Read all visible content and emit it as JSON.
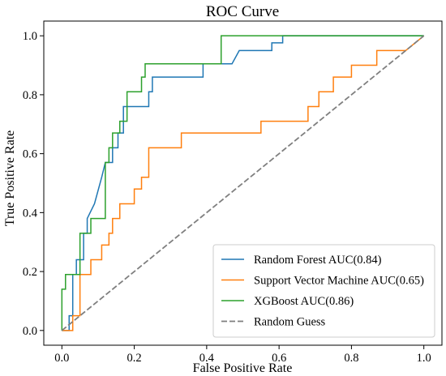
{
  "chart_data": {
    "type": "line",
    "title": "ROC Curve",
    "xlabel": "False Positive Rate",
    "ylabel": "True Positive Rate",
    "xlim": [
      -0.05,
      1.05
    ],
    "ylim": [
      -0.05,
      1.05
    ],
    "x_ticks": [
      "0.0",
      "0.2",
      "0.4",
      "0.6",
      "0.8",
      "1.0"
    ],
    "y_ticks": [
      "0.0",
      "0.2",
      "0.4",
      "0.6",
      "0.8",
      "1.0"
    ],
    "grid": false,
    "legend_position": "lower-right",
    "series": [
      {
        "name": "Random Forest AUC(0.84)",
        "color": "#1f77b4",
        "style": "solid",
        "x": [
          0.0,
          0.02,
          0.02,
          0.03,
          0.03,
          0.04,
          0.04,
          0.06,
          0.06,
          0.07,
          0.07,
          0.09,
          0.11,
          0.12,
          0.14,
          0.14,
          0.155,
          0.155,
          0.17,
          0.17,
          0.19,
          0.19,
          0.24,
          0.24,
          0.25,
          0.25,
          0.39,
          0.39,
          0.47,
          0.49,
          0.56,
          0.58,
          0.58,
          0.61,
          0.61,
          1.0
        ],
        "y": [
          0.0,
          0.0,
          0.05,
          0.05,
          0.19,
          0.19,
          0.24,
          0.24,
          0.33,
          0.33,
          0.38,
          0.43,
          0.52,
          0.57,
          0.57,
          0.62,
          0.62,
          0.67,
          0.67,
          0.76,
          0.76,
          0.76,
          0.76,
          0.81,
          0.81,
          0.86,
          0.86,
          0.905,
          0.905,
          0.95,
          0.95,
          0.95,
          0.976,
          0.976,
          1.0,
          1.0
        ]
      },
      {
        "name": "Support Vector Machine AUC(0.65)",
        "color": "#ff7f0e",
        "style": "solid",
        "x": [
          0.0,
          0.03,
          0.03,
          0.05,
          0.05,
          0.08,
          0.08,
          0.11,
          0.11,
          0.13,
          0.13,
          0.14,
          0.14,
          0.16,
          0.16,
          0.2,
          0.2,
          0.22,
          0.22,
          0.24,
          0.24,
          0.33,
          0.33,
          0.55,
          0.55,
          0.68,
          0.68,
          0.71,
          0.71,
          0.75,
          0.75,
          0.77,
          0.77,
          0.8,
          0.8,
          0.81,
          0.81,
          0.87,
          0.87,
          0.9,
          0.9,
          0.95,
          1.0
        ],
        "y": [
          0.0,
          0.0,
          0.05,
          0.05,
          0.19,
          0.19,
          0.24,
          0.24,
          0.29,
          0.29,
          0.33,
          0.33,
          0.38,
          0.38,
          0.43,
          0.43,
          0.48,
          0.48,
          0.52,
          0.52,
          0.62,
          0.62,
          0.67,
          0.67,
          0.71,
          0.71,
          0.76,
          0.76,
          0.81,
          0.81,
          0.86,
          0.86,
          0.86,
          0.86,
          0.9,
          0.9,
          0.9,
          0.9,
          0.95,
          0.95,
          0.95,
          0.95,
          1.0
        ]
      },
      {
        "name": "XGBoost AUC(0.86)",
        "color": "#2ca02c",
        "style": "solid",
        "x": [
          0.0,
          0.0,
          0.01,
          0.01,
          0.05,
          0.05,
          0.08,
          0.08,
          0.12,
          0.12,
          0.13,
          0.13,
          0.14,
          0.14,
          0.16,
          0.16,
          0.18,
          0.18,
          0.21,
          0.21,
          0.22,
          0.22,
          0.23,
          0.23,
          0.44,
          0.44,
          1.0
        ],
        "y": [
          0.0,
          0.14,
          0.14,
          0.19,
          0.19,
          0.33,
          0.33,
          0.38,
          0.38,
          0.57,
          0.57,
          0.62,
          0.62,
          0.67,
          0.67,
          0.71,
          0.71,
          0.81,
          0.81,
          0.81,
          0.81,
          0.86,
          0.86,
          0.905,
          0.905,
          1.0,
          1.0
        ]
      },
      {
        "name": "Random Guess",
        "color": "#7f7f7f",
        "style": "dashed",
        "x": [
          0.0,
          1.0
        ],
        "y": [
          0.0,
          1.0
        ]
      }
    ]
  }
}
